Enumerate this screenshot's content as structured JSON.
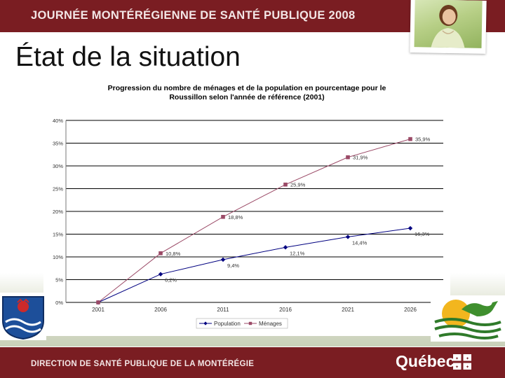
{
  "header": {
    "banner_title": "JOURNÉE MONTÉRÉGIENNE DE SANTÉ PUBLIQUE 2008"
  },
  "slide": {
    "title": "État de la situation"
  },
  "footer": {
    "department": "DIRECTION DE SANTÉ PUBLIQUE DE LA MONTÉRÉGIE",
    "quebec_logo_text": "Québec"
  },
  "colors": {
    "banner": "#7a1d22",
    "population": "#000080",
    "menages": "#9b4a67"
  },
  "chart_data": {
    "type": "line",
    "title": "Progression du nombre de ménages et de la population en pourcentage pour le Roussillon selon l'année de référence (2001)",
    "title_lines": [
      "Progression du nombre de ménages et de la population en pourcentage pour le",
      "Roussillon selon l'année de référence (2001)"
    ],
    "categories": [
      "2001",
      "2006",
      "2011",
      "2016",
      "2021",
      "2026"
    ],
    "ylim": [
      0,
      40
    ],
    "yticks": [
      "0%",
      "5%",
      "10%",
      "15%",
      "20%",
      "25%",
      "30%",
      "35%",
      "40%"
    ],
    "series": [
      {
        "name": "Population",
        "values": [
          0,
          6.2,
          9.4,
          12.1,
          14.4,
          16.3
        ],
        "labels": [
          "",
          "6,2%",
          "9,4%",
          "12,1%",
          "14,4%",
          "16,3%"
        ],
        "color": "#000080",
        "marker": "diamond"
      },
      {
        "name": "Ménages",
        "values": [
          0,
          10.8,
          18.8,
          25.9,
          31.9,
          35.9
        ],
        "labels": [
          "",
          "10,8%",
          "18,8%",
          "25,9%",
          "31,9%",
          "35,9%"
        ],
        "color": "#9b4a67",
        "marker": "square"
      }
    ],
    "legend": "bottom"
  }
}
